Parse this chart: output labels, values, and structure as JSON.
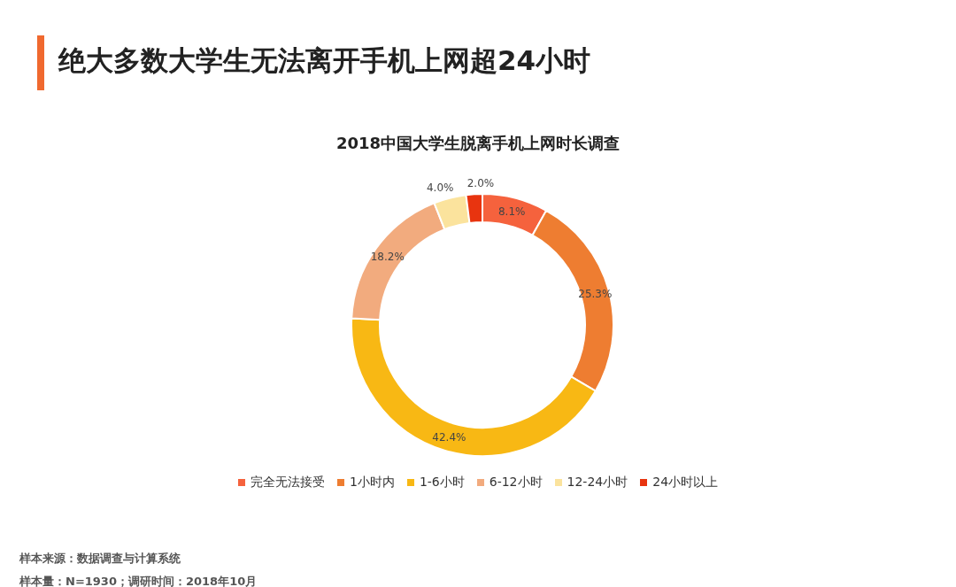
{
  "chart_data": {
    "type": "donut",
    "title": "绝大多数大学生无法离开手机上网超24小时",
    "subtitle": "2018中国大学生脱离手机上网时长调查",
    "categories": [
      "完全无法接受",
      "1小时内",
      "1-6小时",
      "6-12小时",
      "12-24小时",
      "24小时以上"
    ],
    "values": [
      8.1,
      25.3,
      42.4,
      18.2,
      4.0,
      2.0
    ],
    "colors": [
      "#f5623d",
      "#ee7d31",
      "#f8b814",
      "#f2ab7e",
      "#fbe39d",
      "#e8340f"
    ],
    "value_labels": [
      "8.1%",
      "25.3%",
      "42.4%",
      "18.2%",
      "4.0%",
      "2.0%"
    ],
    "legend": "bottom",
    "annotations": [
      "样本来源：数据调查与计算系统",
      "样本量：N=1930；调研时间：2018年10月"
    ]
  }
}
